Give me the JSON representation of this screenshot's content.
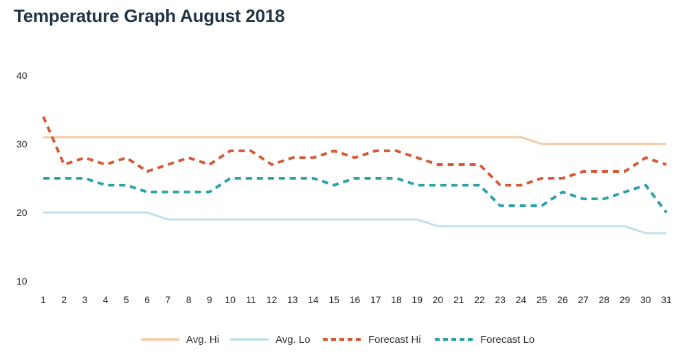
{
  "title": "Temperature Graph August 2018",
  "chart_data": {
    "type": "line",
    "title": "Temperature Graph August 2018",
    "xlabel": "",
    "ylabel": "",
    "x": [
      1,
      2,
      3,
      4,
      5,
      6,
      7,
      8,
      9,
      10,
      11,
      12,
      13,
      14,
      15,
      16,
      17,
      18,
      19,
      20,
      21,
      22,
      23,
      24,
      25,
      26,
      27,
      28,
      29,
      30,
      31
    ],
    "x_tick_labels": [
      "1",
      "2",
      "3",
      "4",
      "5",
      "6",
      "7",
      "8",
      "9",
      "10",
      "11",
      "12",
      "13",
      "14",
      "15",
      "16",
      "17",
      "18",
      "19",
      "20",
      "21",
      "22",
      "23",
      "24",
      "25",
      "26",
      "27",
      "28",
      "29",
      "30",
      "31"
    ],
    "y_ticks": [
      10,
      20,
      30,
      40
    ],
    "y_tick_labels": [
      "10",
      "20",
      "30",
      "40"
    ],
    "ylim": [
      10,
      40
    ],
    "grid": false,
    "legend_position": "bottom",
    "series": [
      {
        "name": "Avg. Hi",
        "color": "#f6c9a2",
        "style": "solid",
        "values": [
          31,
          31,
          31,
          31,
          31,
          31,
          31,
          31,
          31,
          31,
          31,
          31,
          31,
          31,
          31,
          31,
          31,
          31,
          31,
          31,
          31,
          31,
          31,
          31,
          30,
          30,
          30,
          30,
          30,
          30,
          30
        ]
      },
      {
        "name": "Avg. Lo",
        "color": "#bfe0ea",
        "style": "solid",
        "values": [
          20,
          20,
          20,
          20,
          20,
          20,
          19,
          19,
          19,
          19,
          19,
          19,
          19,
          19,
          19,
          19,
          19,
          19,
          19,
          18,
          18,
          18,
          18,
          18,
          18,
          18,
          18,
          18,
          18,
          17,
          17
        ]
      },
      {
        "name": "Forecast Hi",
        "color": "#d65a35",
        "style": "dashed",
        "values": [
          34,
          27,
          28,
          27,
          28,
          26,
          27,
          28,
          27,
          29,
          29,
          27,
          28,
          28,
          29,
          28,
          29,
          29,
          28,
          27,
          27,
          27,
          24,
          24,
          25,
          25,
          26,
          26,
          26,
          28,
          27
        ]
      },
      {
        "name": "Forecast Lo",
        "color": "#2aa3a8",
        "style": "dashed",
        "values": [
          25,
          25,
          25,
          24,
          24,
          23,
          23,
          23,
          23,
          25,
          25,
          25,
          25,
          25,
          24,
          25,
          25,
          25,
          24,
          24,
          24,
          24,
          21,
          21,
          21,
          23,
          22,
          22,
          23,
          24,
          20
        ]
      }
    ]
  }
}
